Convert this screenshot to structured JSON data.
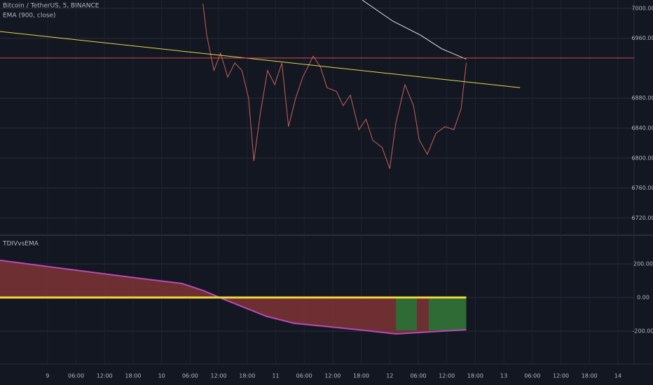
{
  "chart_data": [
    {
      "type": "line",
      "title": "Bitcoin / TetherUS, 5, BINANCE",
      "subtitle": "EMA (900, close)",
      "ylim": [
        6698,
        7011
      ],
      "yticks": [
        {
          "value": 7000,
          "label": "7000.00"
        },
        {
          "value": 6960,
          "label": "6960.00"
        },
        {
          "value": 6880,
          "label": "6880.00"
        },
        {
          "value": 6840,
          "label": "6840.00"
        },
        {
          "value": 6800,
          "label": "6800.00"
        },
        {
          "value": 6760,
          "label": "6760.00"
        },
        {
          "value": 6720,
          "label": "6720.00"
        }
      ],
      "xlim": [
        -10,
        123.4
      ],
      "grid": true,
      "series": [
        {
          "color": "#c8605a",
          "width": 1,
          "x": [
            32.7,
            33.5,
            35.0,
            36.4,
            37.9,
            39.4,
            40.9,
            42.3,
            43.4,
            44.8,
            46.3,
            47.8,
            49.3,
            50.7,
            52.2,
            53.7,
            55.9,
            57.4,
            58.8,
            60.8,
            62.2,
            63.7,
            65.5,
            67.0,
            68.4,
            70.4,
            72.0,
            73.3,
            75.2,
            77.0,
            78.2,
            79.9,
            81.7,
            83.6,
            85.5,
            87.0,
            88.1
          ],
          "values": [
            7006,
            6964,
            6917,
            6940,
            6908,
            6927,
            6917,
            6880,
            6796,
            6861,
            6917,
            6898,
            6927,
            6842,
            6880,
            6908,
            6936,
            6922,
            6894,
            6889,
            6870,
            6884,
            6838,
            6852,
            6824,
            6814,
            6786,
            6847,
            6898,
            6870,
            6824,
            6805,
            6833,
            6842,
            6838,
            6866,
            6927
          ]
        },
        {
          "color": "#e0e3eb",
          "width": 1,
          "x": [
            66.2,
            72.6,
            78.5,
            82.9,
            88.1
          ],
          "values": [
            7011,
            6983,
            6964,
            6946,
            6932
          ]
        },
        {
          "color": "#e6d74a",
          "width": 1,
          "x": [
            -10,
            99.4
          ],
          "values": [
            6969,
            6894
          ]
        },
        {
          "color": "#d84c4c",
          "width": 1,
          "x": [
            -10,
            123.4
          ],
          "values": [
            6933.5,
            6933.5
          ]
        }
      ]
    },
    {
      "type": "area",
      "title": "TDIVvsEMA",
      "ylim": [
        -396,
        354
      ],
      "yticks": [
        {
          "value": 200,
          "label": "200.00"
        },
        {
          "value": 0,
          "label": "0.00"
        },
        {
          "value": -200,
          "label": "-200.00"
        }
      ],
      "xlim": [
        -10,
        123.4
      ],
      "xticks": [
        {
          "value": 0,
          "label": "9"
        },
        {
          "value": 6,
          "label": "06:00"
        },
        {
          "value": 12,
          "label": "12:00"
        },
        {
          "value": 18,
          "label": "18:00"
        },
        {
          "value": 24,
          "label": "10"
        },
        {
          "value": 30,
          "label": "06:00"
        },
        {
          "value": 36,
          "label": "12:00"
        },
        {
          "value": 42,
          "label": "18:00"
        },
        {
          "value": 48,
          "label": "11"
        },
        {
          "value": 54,
          "label": "06:00"
        },
        {
          "value": 60,
          "label": "12:00"
        },
        {
          "value": 66,
          "label": "18:00"
        },
        {
          "value": 72,
          "label": "12"
        },
        {
          "value": 78,
          "label": "06:00"
        },
        {
          "value": 84,
          "label": "12:00"
        },
        {
          "value": 90,
          "label": "18:00"
        },
        {
          "value": 96,
          "label": "13"
        },
        {
          "value": 102,
          "label": "06:00"
        },
        {
          "value": 108,
          "label": "12:00"
        },
        {
          "value": 114,
          "label": "18:00"
        },
        {
          "value": 120,
          "label": "14"
        }
      ],
      "grid": true,
      "highlight_color": "#2e6b35",
      "highlights": [
        [
          73.3,
          77.7
        ],
        [
          80.2,
          88.1
        ]
      ],
      "series": [
        {
          "color": "#b84ab8",
          "fill": "#7e3434",
          "width": 2,
          "x": [
            -10,
            4.7,
            19.5,
            28.3,
            32.7,
            37.2,
            41.6,
            46.0,
            51.9,
            60.8,
            66.7,
            73.3,
            78.5,
            88.1
          ],
          "values": [
            221,
            167,
            113,
            83,
            42,
            -12,
            -62,
            -112,
            -154,
            -179,
            -196,
            -217,
            -208,
            -192
          ]
        },
        {
          "color": "#f0d43a",
          "width": 3,
          "x": [
            -10,
            88.1
          ],
          "values": [
            0,
            0
          ]
        }
      ]
    }
  ]
}
